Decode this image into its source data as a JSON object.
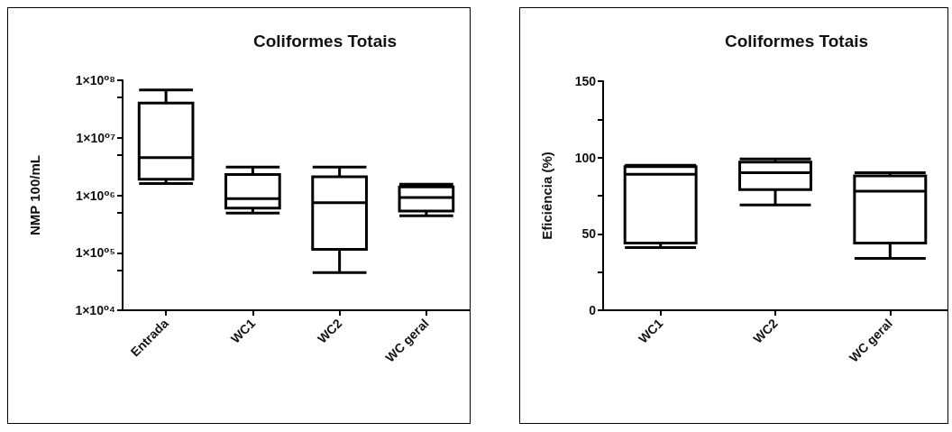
{
  "chart_data": [
    {
      "type": "box",
      "title": "Coliformes Totais",
      "ylabel": "NMP 100/mL",
      "categories": [
        "Entrada",
        "WC1",
        "WC2",
        "WC geral"
      ],
      "log": true,
      "ylim": [
        10000,
        100000000
      ],
      "yticks": [
        {
          "value": 10000,
          "label": "1×10⁰⁴"
        },
        {
          "value": 50000,
          "label": null
        },
        {
          "value": 100000,
          "label": "1×10⁰⁵"
        },
        {
          "value": 500000,
          "label": null
        },
        {
          "value": 1000000,
          "label": "1×10⁰⁶"
        },
        {
          "value": 5000000,
          "label": null
        },
        {
          "value": 10000000,
          "label": "1×10⁰⁷"
        },
        {
          "value": 50000000,
          "label": null
        },
        {
          "value": 100000000,
          "label": "1×10⁰⁸"
        }
      ],
      "series": [
        {
          "color": "#000000",
          "boxes": [
            {
              "low": 1600000,
              "q1": 1900000,
              "median": 4500000,
              "q3": 40000000,
              "high": 68000000
            },
            {
              "low": 490000,
              "q1": 600000,
              "median": 870000,
              "q3": 2300000,
              "high": 3100000
            },
            {
              "low": 45000,
              "q1": 115000,
              "median": 740000,
              "q3": 2100000,
              "high": 3100000
            },
            {
              "low": 440000,
              "q1": 530000,
              "median": 910000,
              "q3": 1400000,
              "high": 1550000
            }
          ]
        }
      ]
    },
    {
      "type": "box",
      "title": "Coliformes Totais",
      "ylabel": "Eficiência (%)",
      "categories": [
        "WC1",
        "WC2",
        "WC geral"
      ],
      "ylim": [
        0,
        150
      ],
      "yticks": [
        0,
        {
          "value": 25,
          "label": null
        },
        50,
        {
          "value": 75,
          "label": null
        },
        100,
        {
          "value": 125,
          "label": null
        },
        150
      ],
      "series": [
        {
          "color": "#000000",
          "boxes": [
            {
              "low": 41,
              "q1": 44,
              "median": 89,
              "q3": 94,
              "high": 95
            },
            {
              "low": 69,
              "q1": 79,
              "median": 90,
              "q3": 97,
              "high": 99
            },
            {
              "low": 34,
              "q1": 44,
              "median": 78,
              "q3": 88,
              "high": 90
            }
          ]
        }
      ]
    }
  ]
}
